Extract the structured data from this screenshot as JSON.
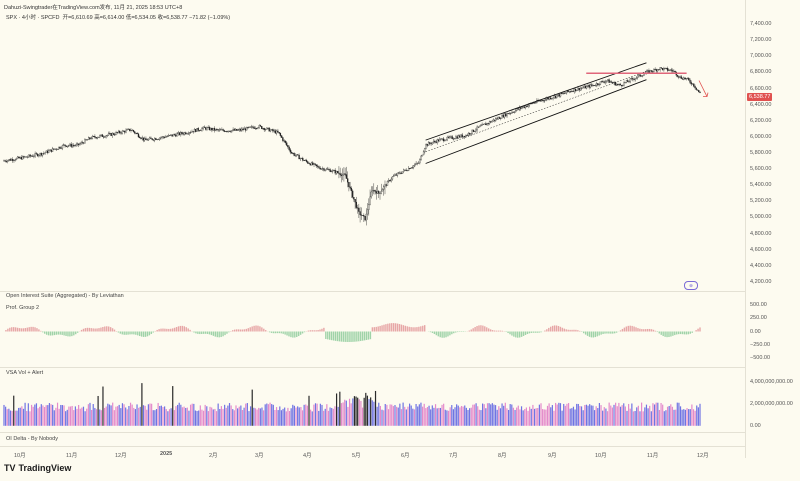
{
  "header": {
    "author_line": "Dahuzi-Swingtrader在TradingView.com发布, 11月 21, 2025 18:53 UTC+8",
    "symbol_line": "SPX · 4小时 · SPCFD",
    "ohlc": "开=6,610.69  高=6,614.00  低=6,534.05  收=6,538.77  −71.82 (−1.09%)"
  },
  "price_tag": "6,538.77",
  "brand": {
    "name": "TradingView",
    "mark": "TV"
  },
  "panes": {
    "oi_title": "Open Interest Suite (Aggregated) - By Leviathan",
    "prof_group": "Prof. Group 2",
    "vsa_title": "VSA Vol + Alert",
    "oi_delta": "OI Delta - By Nobody"
  },
  "colors": {
    "background": "#fdfbf0",
    "candle": "#1e1e1e",
    "channel": "#111111",
    "resistance": "#e0667a",
    "arrow": "#e0514f",
    "hist_pos": "#e7a6a6",
    "hist_neg": "#9fd3a8",
    "vol_blue": "#6f73e3",
    "vol_pink": "#e48acb"
  },
  "chart_data": {
    "type": "candlestick",
    "symbol": "SPX",
    "timeframe": "4小时",
    "y_ticks": [
      "7,400.00",
      "7,200.00",
      "7,000.00",
      "6,800.00",
      "6,600.00",
      "6,400.00",
      "6,200.00",
      "6,000.00",
      "5,800.00",
      "5,600.00",
      "5,400.00",
      "5,200.00",
      "5,000.00",
      "4,800.00",
      "4,600.00",
      "4,400.00",
      "4,200.00"
    ],
    "ylim": [
      4100,
      7550
    ],
    "x_ticks": [
      "10月",
      "11月",
      "12月",
      "2025",
      "2月",
      "3月",
      "4月",
      "5月",
      "6月",
      "7月",
      "8月",
      "9月",
      "10月",
      "11月",
      "12月"
    ],
    "close_path": [
      [
        0,
        5705
      ],
      [
        3,
        5745
      ],
      [
        6,
        5800
      ],
      [
        9,
        5895
      ],
      [
        11,
        5895
      ],
      [
        13,
        5990
      ],
      [
        16,
        6030
      ],
      [
        19,
        6090
      ],
      [
        21,
        5960
      ],
      [
        24,
        6000
      ],
      [
        27,
        6050
      ],
      [
        30,
        6110
      ],
      [
        32,
        6080
      ],
      [
        35,
        6080
      ],
      [
        38,
        6130
      ],
      [
        41,
        6050
      ],
      [
        43,
        5800
      ],
      [
        45,
        5700
      ],
      [
        47,
        5620
      ],
      [
        49,
        5580
      ],
      [
        51,
        5520
      ],
      [
        52,
        5290
      ],
      [
        53,
        5060
      ],
      [
        54,
        4980
      ],
      [
        55,
        5350
      ],
      [
        56,
        5300
      ],
      [
        58,
        5500
      ],
      [
        60,
        5590
      ],
      [
        62,
        5680
      ],
      [
        63,
        5900
      ],
      [
        65,
        5960
      ],
      [
        67,
        5990
      ],
      [
        69,
        6020
      ],
      [
        71,
        6120
      ],
      [
        73,
        6200
      ],
      [
        75,
        6280
      ],
      [
        77,
        6350
      ],
      [
        79,
        6420
      ],
      [
        81,
        6470
      ],
      [
        83,
        6520
      ],
      [
        85,
        6580
      ],
      [
        88,
        6640
      ],
      [
        90,
        6700
      ],
      [
        92,
        6640
      ],
      [
        94,
        6720
      ],
      [
        96,
        6800
      ],
      [
        98,
        6850
      ],
      [
        100,
        6820
      ],
      [
        101,
        6740
      ],
      [
        102,
        6720
      ],
      [
        103,
        6650
      ],
      [
        104,
        6538
      ]
    ],
    "channel_upper": [
      [
        63,
        5960
      ],
      [
        96,
        6920
      ]
    ],
    "channel_lower": [
      [
        63,
        5670
      ],
      [
        96,
        6710
      ]
    ],
    "channel_mid": [
      [
        63,
        5815
      ],
      [
        96,
        6815
      ]
    ],
    "resistance": {
      "value": 6790,
      "from": 87,
      "to": 102
    },
    "oi_pane": {
      "ticks": [
        "500.00",
        "250.00",
        "0.00",
        "−250.00",
        "−500.00"
      ],
      "ylim": [
        -600,
        600
      ]
    },
    "vsa_pane": {
      "ticks": [
        "4,000,000,000.00",
        "2,000,000,000.00",
        "0.00"
      ],
      "ylim": [
        -200000000,
        4500000000
      ]
    }
  }
}
